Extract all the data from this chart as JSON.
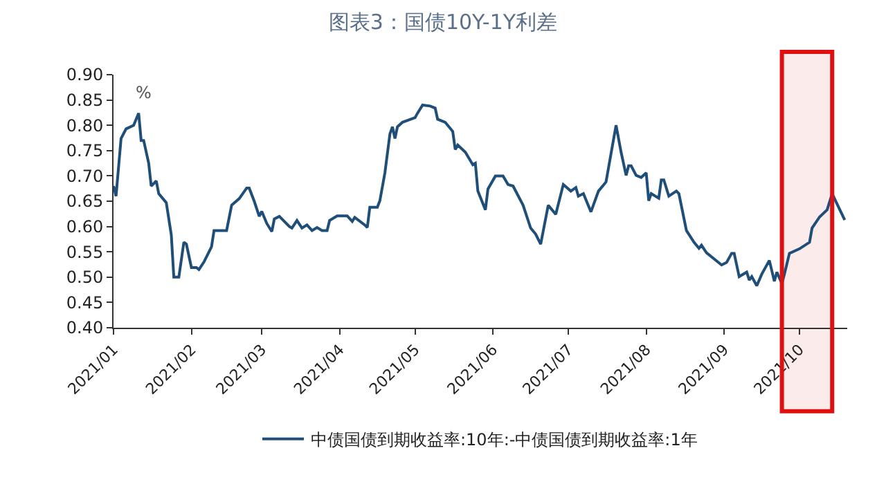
{
  "chart_data": {
    "type": "line",
    "title": "图表3：国债10Y-1Y利差",
    "ylabel": "%",
    "x": [
      "2021-01-01",
      "2021-01-02",
      "2021-01-04",
      "2021-01-06",
      "2021-01-09",
      "2021-01-11",
      "2021-01-12",
      "2021-01-13",
      "2021-01-15",
      "2021-01-16",
      "2021-01-18",
      "2021-01-19",
      "2021-01-22",
      "2021-01-24",
      "2021-01-25",
      "2021-01-27",
      "2021-01-29",
      "2021-01-30",
      "2021-02-01",
      "2021-02-03",
      "2021-02-04",
      "2021-02-06",
      "2021-02-09",
      "2021-02-10",
      "2021-02-15",
      "2021-02-17",
      "2021-02-20",
      "2021-02-23",
      "2021-02-24",
      "2021-02-26",
      "2021-02-28",
      "2021-03-01",
      "2021-03-03",
      "2021-03-05",
      "2021-03-06",
      "2021-03-08",
      "2021-03-12",
      "2021-03-13",
      "2021-03-15",
      "2021-03-17",
      "2021-03-19",
      "2021-03-21",
      "2021-03-23",
      "2021-03-25",
      "2021-03-27",
      "2021-03-28",
      "2021-03-31",
      "2021-04-04",
      "2021-04-06",
      "2021-04-07",
      "2021-04-11",
      "2021-04-12",
      "2021-04-13",
      "2021-04-16",
      "2021-04-17",
      "2021-04-19",
      "2021-04-21",
      "2021-04-22",
      "2021-04-23",
      "2021-04-24",
      "2021-04-26",
      "2021-05-01",
      "2021-05-02",
      "2021-05-04",
      "2021-05-07",
      "2021-05-09",
      "2021-05-10",
      "2021-05-13",
      "2021-05-16",
      "2021-05-17",
      "2021-05-18",
      "2021-05-21",
      "2021-05-24",
      "2021-05-25",
      "2021-05-26",
      "2021-05-29",
      "2021-05-30",
      "2021-06-02",
      "2021-06-05",
      "2021-06-07",
      "2021-06-09",
      "2021-06-13",
      "2021-06-16",
      "2021-06-18",
      "2021-06-20",
      "2021-06-23",
      "2021-06-26",
      "2021-06-29",
      "2021-07-02",
      "2021-07-04",
      "2021-07-05",
      "2021-07-07",
      "2021-07-10",
      "2021-07-13",
      "2021-07-16",
      "2021-07-20",
      "2021-07-22",
      "2021-07-24",
      "2021-07-25",
      "2021-07-26",
      "2021-07-28",
      "2021-07-30",
      "2021-08-01",
      "2021-08-02",
      "2021-08-03",
      "2021-08-06",
      "2021-08-07",
      "2021-08-08",
      "2021-08-10",
      "2021-08-13",
      "2021-08-14",
      "2021-08-17",
      "2021-08-20",
      "2021-08-22",
      "2021-08-23",
      "2021-08-25",
      "2021-08-31",
      "2021-09-02",
      "2021-09-04",
      "2021-09-05",
      "2021-09-07",
      "2021-09-10",
      "2021-09-11",
      "2021-09-12",
      "2021-09-14",
      "2021-09-16",
      "2021-09-19",
      "2021-09-21",
      "2021-09-22",
      "2021-09-24",
      "2021-09-25",
      "2021-09-27",
      "2021-10-01",
      "2021-10-05",
      "2021-10-06",
      "2021-10-09",
      "2021-10-12",
      "2021-10-14",
      "2021-10-19"
    ],
    "series": [
      {
        "name": "中债国债到期收益率:10年:-中债国债到期收益率:1年",
        "color": "#1f4e79",
        "values": [
          0.68,
          0.66,
          0.774,
          0.793,
          0.8,
          0.824,
          0.77,
          0.77,
          0.725,
          0.68,
          0.69,
          0.665,
          0.647,
          0.583,
          0.5,
          0.5,
          0.569,
          0.565,
          0.519,
          0.519,
          0.515,
          0.53,
          0.56,
          0.592,
          0.592,
          0.642,
          0.655,
          0.676,
          0.676,
          0.65,
          0.62,
          0.63,
          0.606,
          0.59,
          0.615,
          0.62,
          0.6,
          0.597,
          0.612,
          0.597,
          0.603,
          0.592,
          0.598,
          0.592,
          0.592,
          0.612,
          0.621,
          0.621,
          0.61,
          0.618,
          0.603,
          0.598,
          0.638,
          0.638,
          0.651,
          0.706,
          0.783,
          0.797,
          0.774,
          0.797,
          0.806,
          0.815,
          0.824,
          0.84,
          0.838,
          0.834,
          0.812,
          0.806,
          0.788,
          0.752,
          0.761,
          0.747,
          0.722,
          0.725,
          0.67,
          0.633,
          0.674,
          0.7,
          0.7,
          0.683,
          0.68,
          0.642,
          0.597,
          0.585,
          0.565,
          0.642,
          0.624,
          0.683,
          0.67,
          0.677,
          0.66,
          0.665,
          0.629,
          0.67,
          0.688,
          0.8,
          0.747,
          0.701,
          0.72,
          0.72,
          0.701,
          0.697,
          0.706,
          0.651,
          0.665,
          0.656,
          0.692,
          0.692,
          0.66,
          0.67,
          0.665,
          0.592,
          0.569,
          0.557,
          0.563,
          0.548,
          0.524,
          0.529,
          0.547,
          0.547,
          0.501,
          0.51,
          0.494,
          0.501,
          0.483,
          0.506,
          0.533,
          0.492,
          0.51,
          0.487,
          0.506,
          0.547,
          0.556,
          0.569,
          0.597,
          0.619,
          0.633,
          0.665,
          0.613
        ]
      }
    ],
    "xlim": [
      "2021-01-01",
      "2021-10-20"
    ],
    "xticks": [
      {
        "value": "2021-01-01",
        "label": "2021/01"
      },
      {
        "value": "2021-02-01",
        "label": "2021/02"
      },
      {
        "value": "2021-03-01",
        "label": "2021/03"
      },
      {
        "value": "2021-04-01",
        "label": "2021/04"
      },
      {
        "value": "2021-05-01",
        "label": "2021/05"
      },
      {
        "value": "2021-06-01",
        "label": "2021/06"
      },
      {
        "value": "2021-07-01",
        "label": "2021/07"
      },
      {
        "value": "2021-08-01",
        "label": "2021/08"
      },
      {
        "value": "2021-09-01",
        "label": "2021/09"
      },
      {
        "value": "2021-10-01",
        "label": "2021/10"
      }
    ],
    "ylim": [
      0.4,
      0.9
    ],
    "yticks": [
      {
        "value": 0.4,
        "label": "0.40"
      },
      {
        "value": 0.45,
        "label": "0.45"
      },
      {
        "value": 0.5,
        "label": "0.50"
      },
      {
        "value": 0.55,
        "label": "0.55"
      },
      {
        "value": 0.6,
        "label": "0.60"
      },
      {
        "value": 0.65,
        "label": "0.65"
      },
      {
        "value": 0.7,
        "label": "0.70"
      },
      {
        "value": 0.75,
        "label": "0.75"
      },
      {
        "value": 0.8,
        "label": "0.80"
      },
      {
        "value": 0.85,
        "label": "0.85"
      },
      {
        "value": 0.9,
        "label": "0.90"
      }
    ],
    "bands": [
      {
        "axis": "x",
        "from": "2021-09-24",
        "to": "2021-10-14",
        "color": "#e01010"
      }
    ],
    "grid": false,
    "legend": "bottom",
    "marker": "none",
    "line_style": "solid"
  }
}
